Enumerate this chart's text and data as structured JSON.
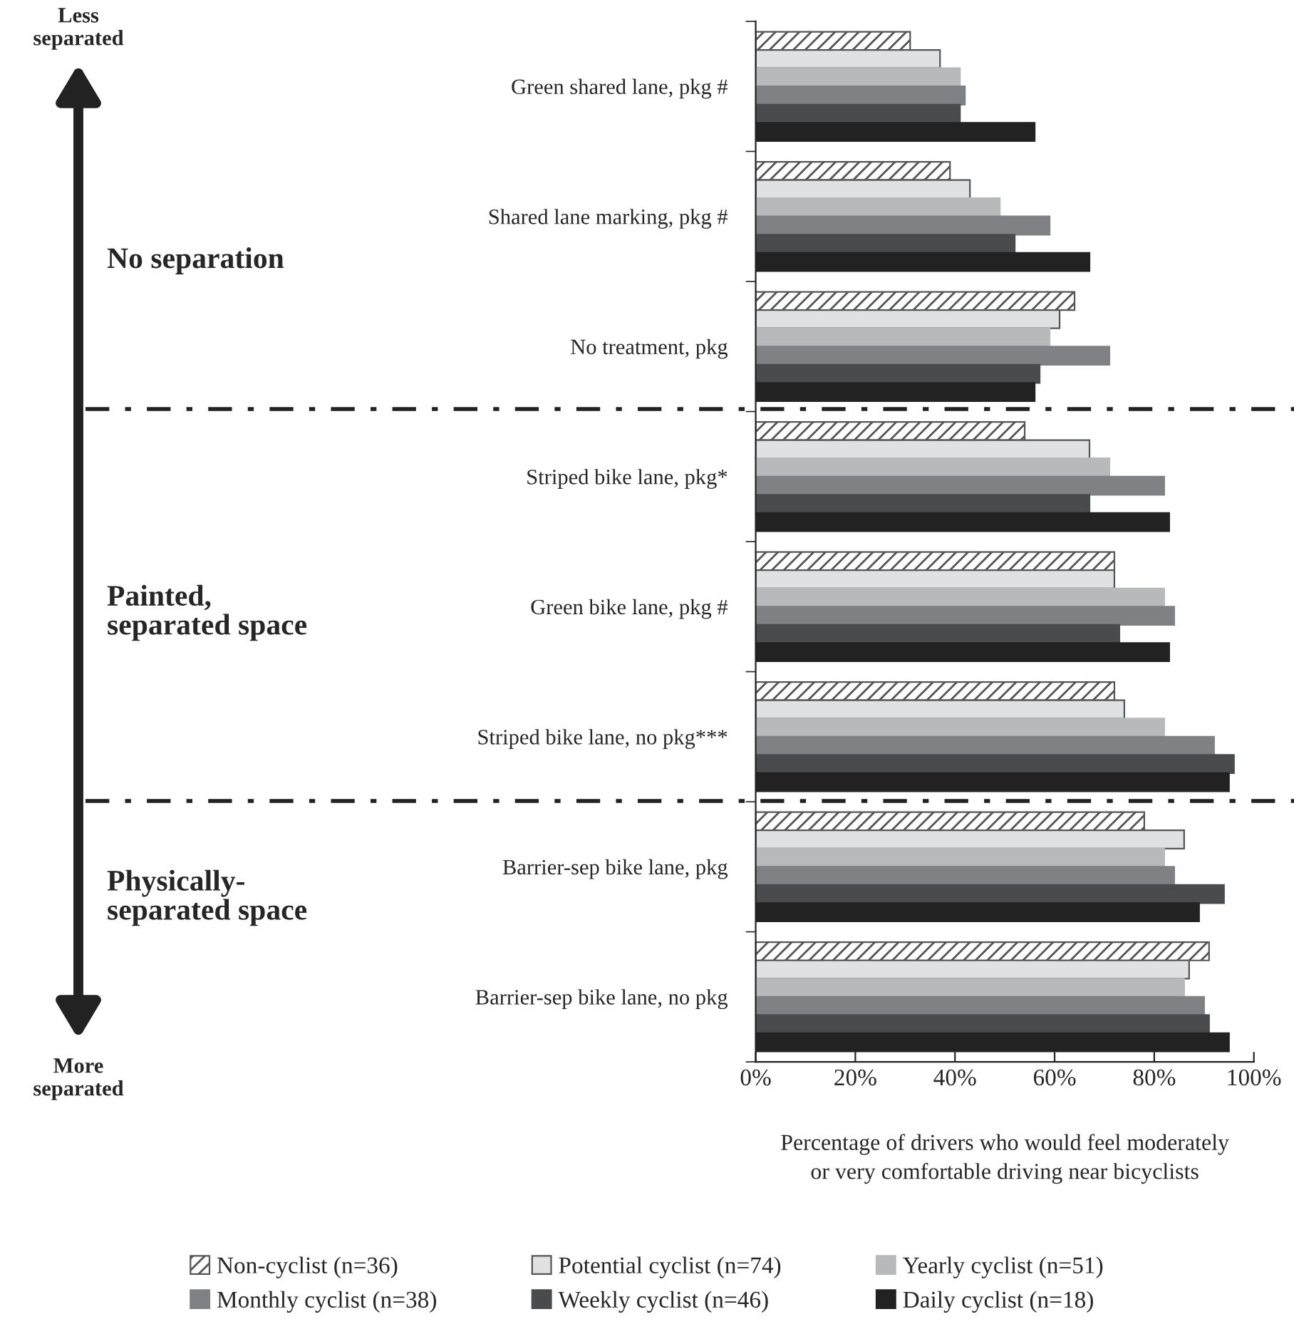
{
  "chart_data": {
    "type": "bar",
    "orientation": "horizontal",
    "categories": [
      "Green shared lane, pkg #",
      "Shared lane marking, pkg #",
      "No treatment, pkg",
      "Striped bike lane, pkg*",
      "Green bike lane, pkg #",
      "Striped bike lane, no pkg***",
      "Barrier-sep bike lane, pkg",
      "Barrier-sep bike lane, no pkg"
    ],
    "series": [
      {
        "name": "Non-cyclist (n=36)",
        "color": "#555555",
        "values": [
          31,
          39,
          64,
          54,
          72,
          72,
          78,
          91
        ]
      },
      {
        "name": "Potential cyclist (n=74)",
        "color": "#e0e1e3",
        "values": [
          37,
          43,
          61,
          67,
          72,
          74,
          86,
          87
        ]
      },
      {
        "name": "Yearly cyclist (n=51)",
        "color": "#b8b9bb",
        "values": [
          41,
          49,
          59,
          71,
          82,
          82,
          82,
          86
        ]
      },
      {
        "name": "Monthly cyclist (n=38)",
        "color": "#808184",
        "values": [
          42,
          59,
          71,
          82,
          84,
          92,
          84,
          90
        ]
      },
      {
        "name": "Weekly cyclist (n=46)",
        "color": "#4a4b4d",
        "values": [
          41,
          52,
          57,
          67,
          73,
          96,
          94,
          91
        ]
      },
      {
        "name": "Daily cyclist (n=18)",
        "color": "#222222",
        "values": [
          56,
          67,
          56,
          83,
          83,
          95,
          89,
          95
        ]
      }
    ],
    "xlim": [
      0,
      100
    ],
    "xticks": [
      {
        "value": 0,
        "label": "0%"
      },
      {
        "value": 20,
        "label": "20%"
      },
      {
        "value": 40,
        "label": "40%"
      },
      {
        "value": 60,
        "label": "60%"
      },
      {
        "value": 80,
        "label": "80%"
      },
      {
        "value": 100,
        "label": "100%"
      }
    ],
    "xlabel": "Percentage of drivers who would feel moderately\nor very comfortable driving near bicyclists",
    "annotations": [
      "Less\nseparated",
      "More\nseparated",
      "No separation",
      "Painted,\nseparated space",
      "Physically-\nseparated space"
    ],
    "legend": "bottom",
    "grid": false
  }
}
